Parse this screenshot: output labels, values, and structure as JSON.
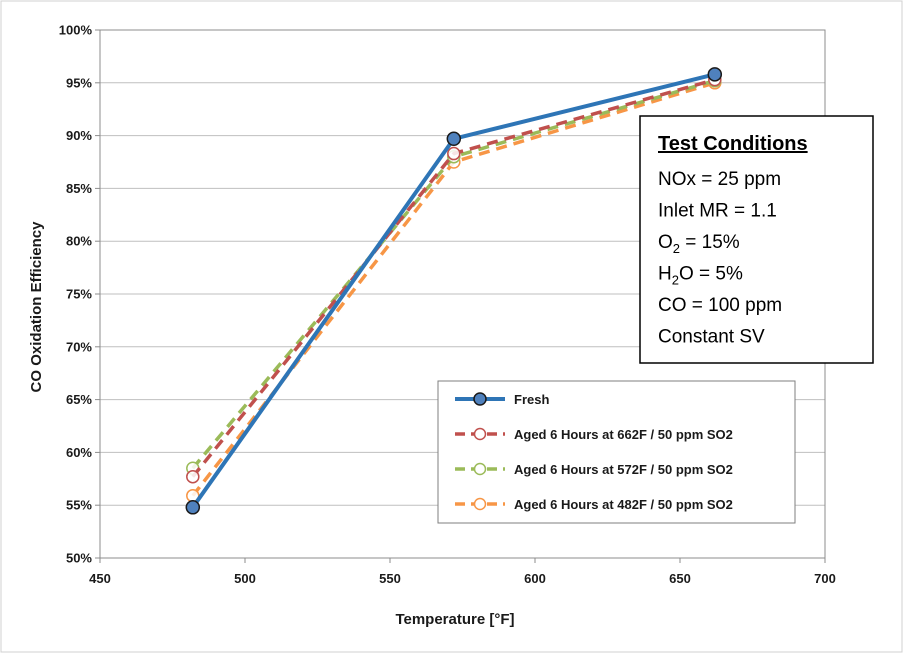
{
  "chart_data": {
    "type": "line",
    "title": "",
    "xlabel": "Temperature [°F]",
    "ylabel": "CO Oxidation Efficiency",
    "xlim": [
      450,
      700
    ],
    "ylim": [
      0.5,
      1.0
    ],
    "x_ticks": [
      450,
      500,
      550,
      600,
      650,
      700
    ],
    "x_tick_labels": [
      "450",
      "500",
      "550",
      "600",
      "650",
      "700"
    ],
    "y_ticks": [
      0.5,
      0.55,
      0.6,
      0.65,
      0.7,
      0.75,
      0.8,
      0.85,
      0.9,
      0.95,
      1.0
    ],
    "y_tick_labels": [
      "50%",
      "55%",
      "60%",
      "65%",
      "70%",
      "75%",
      "80%",
      "85%",
      "90%",
      "95%",
      "100%"
    ],
    "grid": "horizontal",
    "legend_position": "bottom-right",
    "series": [
      {
        "name": "Fresh",
        "x": [
          482,
          572,
          662
        ],
        "y": [
          0.548,
          0.897,
          0.958
        ],
        "color": "#2e75b6",
        "style": "solid",
        "marker": "filled-circle"
      },
      {
        "name": "Aged 6 Hours at 662F / 50 ppm SO2",
        "x": [
          482,
          572,
          662
        ],
        "y": [
          0.577,
          0.883,
          0.953
        ],
        "color": "#c0504d",
        "style": "dashed",
        "marker": "open-circle"
      },
      {
        "name": "Aged 6 Hours at 572F / 50 ppm SO2",
        "x": [
          482,
          572,
          662
        ],
        "y": [
          0.585,
          0.88,
          0.952
        ],
        "color": "#9bbb59",
        "style": "dashed",
        "marker": "open-circle"
      },
      {
        "name": "Aged 6 Hours at 482F / 50 ppm SO2",
        "x": [
          482,
          572,
          662
        ],
        "y": [
          0.559,
          0.875,
          0.95
        ],
        "color": "#f79646",
        "style": "dashed",
        "marker": "open-circle"
      }
    ],
    "annotation": {
      "title": "Test Conditions",
      "lines": [
        {
          "pre": "NOx = 25 ppm",
          "sub": "",
          "post": ""
        },
        {
          "pre": "Inlet MR = 1.1",
          "sub": "",
          "post": ""
        },
        {
          "pre": "O",
          "sub": "2",
          "post": " = 15%"
        },
        {
          "pre": "H",
          "sub": "2",
          "post": "O = 5%"
        },
        {
          "pre": "CO = 100 ppm",
          "sub": "",
          "post": ""
        },
        {
          "pre": "Constant SV",
          "sub": "",
          "post": ""
        }
      ]
    }
  }
}
